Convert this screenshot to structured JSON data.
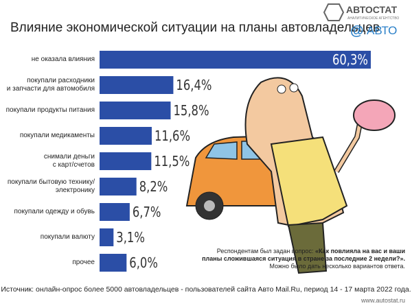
{
  "chart_data": {
    "type": "bar",
    "orientation": "horizontal",
    "title": "Влияние экономической ситуации на планы автовладельцев",
    "categories": [
      "не оказала влияния",
      "покупали расходники\nи запчасти для автомобиля",
      "покупали продукты питания",
      "покупали медикаменты",
      "снимали деньги\nс карт/счетов",
      "покупали бытовую технику/\nэлектронику",
      "покупали одежду и обувь",
      "покупали валюту",
      "прочее"
    ],
    "values": [
      60.3,
      16.4,
      15.8,
      11.6,
      11.5,
      8.2,
      6.7,
      3.1,
      6.0
    ],
    "value_labels": [
      "60,3%",
      "16,4%",
      "15,8%",
      "11,6%",
      "11,5%",
      "8,2%",
      "6,7%",
      "3,1%",
      "6,0%"
    ],
    "color": "#2b4ea6"
  },
  "logo": {
    "name": "АВТОСТАТ",
    "tagline": "АНАЛИТИЧЕСКОЕ АГЕНТСТВО"
  },
  "partner_logo": {
    "symbol": "@",
    "name": "АВТО"
  },
  "note": {
    "prefix": "Респондентам был задан вопрос: ",
    "question": "«Как повлияла на вас и ваши планы сложившаяся ситуация в стране за последние 2 недели?».",
    "suffix": "Можно было дать несколько вариантов ответа."
  },
  "source": "Источник: онлайн-опрос более 5000 автовладельцев - пользователей сайта Авто Mail.Ru, период 14 - 17 марта 2022 года.",
  "website": "www.autostat.ru"
}
